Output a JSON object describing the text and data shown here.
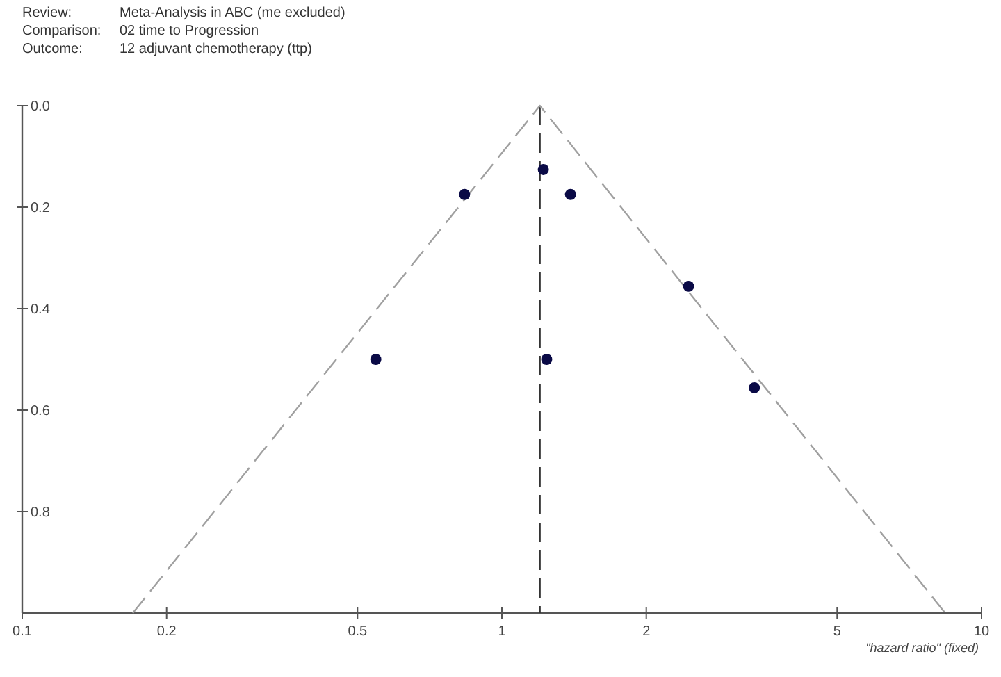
{
  "chart_data": {
    "type": "scatter",
    "annotations": [
      "Review: Meta-Analysis in ABC (me excluded)",
      "Comparison: 02 time to Progression",
      "Outcome: 12 adjuvant chemotherapy (ttp)"
    ],
    "xlabel": "\"hazard ratio\" (fixed)",
    "log": "x",
    "marker": "circle",
    "xlim": [
      0.1,
      10
    ],
    "xticks": [
      0.1,
      0.2,
      0.5,
      1,
      2,
      5,
      10
    ],
    "ylim": [
      1,
      0
    ],
    "yticks": [
      {
        "value": 0,
        "label": "0.0"
      },
      0.2,
      0.4,
      0.6,
      0.8
    ],
    "series": [
      {
        "type": "line",
        "line_style": "dashed",
        "marker": "none",
        "color": "#a0a0a0",
        "x": [
          0.17,
          1.2,
          8.4
        ],
        "values": [
          1,
          0,
          1
        ]
      },
      {
        "color": "#0a0a46",
        "x": [
          0.546,
          0.836,
          1.22,
          1.39,
          2.45,
          3.36,
          1.24
        ],
        "values": [
          0.5,
          0.175,
          0.126,
          0.175,
          0.356,
          0.556,
          0.5
        ]
      }
    ],
    "ref_lines": [
      {
        "axis": "x",
        "value": 1.2,
        "color": "#333333",
        "line_style": "dashed"
      }
    ]
  }
}
